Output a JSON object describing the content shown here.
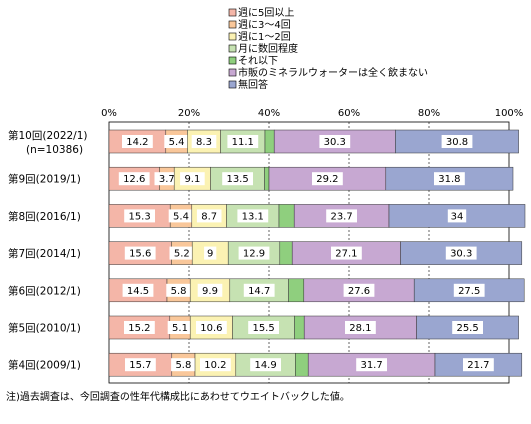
{
  "chart_data": {
    "type": "bar",
    "stacked": true,
    "orientation": "horizontal",
    "percent_stacked": true,
    "xlim": [
      0,
      100
    ],
    "x_ticks": [
      "0%",
      "20%",
      "40%",
      "60%",
      "80%",
      "100%"
    ],
    "legend_placement": "top-center",
    "categories": [
      "第10回(2022/1)",
      "第9回(2019/1)",
      "第8回(2016/1)",
      "第7回(2014/1)",
      "第6回(2012/1)",
      "第5回(2010/1)",
      "第4回(2009/1)"
    ],
    "category_sublabels": [
      "(n=10386)",
      "",
      "",
      "",
      "",
      "",
      ""
    ],
    "series": [
      {
        "name": "週に5回以上",
        "color": "#f4b6a8",
        "values": [
          14.2,
          12.6,
          15.3,
          15.6,
          14.5,
          15.2,
          15.7
        ]
      },
      {
        "name": "週に3〜4回",
        "color": "#f9c79a",
        "values": [
          5.4,
          3.7,
          5.4,
          5.2,
          5.8,
          5.1,
          5.8
        ]
      },
      {
        "name": "週に1〜2回",
        "color": "#fbf2b3",
        "values": [
          8.3,
          9.1,
          8.7,
          9.0,
          9.9,
          10.6,
          10.2
        ]
      },
      {
        "name": "月に数回程度",
        "color": "#c6e2b2",
        "values": [
          11.1,
          13.5,
          13.1,
          12.9,
          14.7,
          15.5,
          14.9
        ]
      },
      {
        "name": "それ以下",
        "color": "#8fcf7e",
        "values": [
          2.3,
          1.1,
          3.8,
          3.1,
          3.8,
          2.4,
          3.2
        ]
      },
      {
        "name": "市販のミネラルウォーターは全く飲まない",
        "color": "#c7a8d2",
        "values": [
          30.3,
          29.2,
          23.7,
          27.1,
          27.6,
          28.1,
          31.7
        ]
      },
      {
        "name": "無回答",
        "color": "#9aa6d0",
        "values": [
          30.8,
          31.8,
          34.0,
          30.3,
          27.5,
          25.5,
          21.7
        ]
      }
    ],
    "shown_labels": [
      [
        true,
        true,
        true,
        true,
        false,
        true,
        true
      ],
      [
        true,
        true,
        true,
        true,
        false,
        true,
        true
      ],
      [
        true,
        true,
        true,
        true,
        false,
        true,
        true
      ],
      [
        true,
        true,
        true,
        true,
        false,
        true,
        true
      ],
      [
        true,
        true,
        true,
        true,
        false,
        true,
        true
      ],
      [
        true,
        true,
        true,
        true,
        false,
        true,
        true
      ],
      [
        true,
        true,
        true,
        true,
        false,
        true,
        true
      ]
    ]
  },
  "footnote": "注)過去調査は、今回調査の性年代構成比にあわせてウエイトバックした値。"
}
